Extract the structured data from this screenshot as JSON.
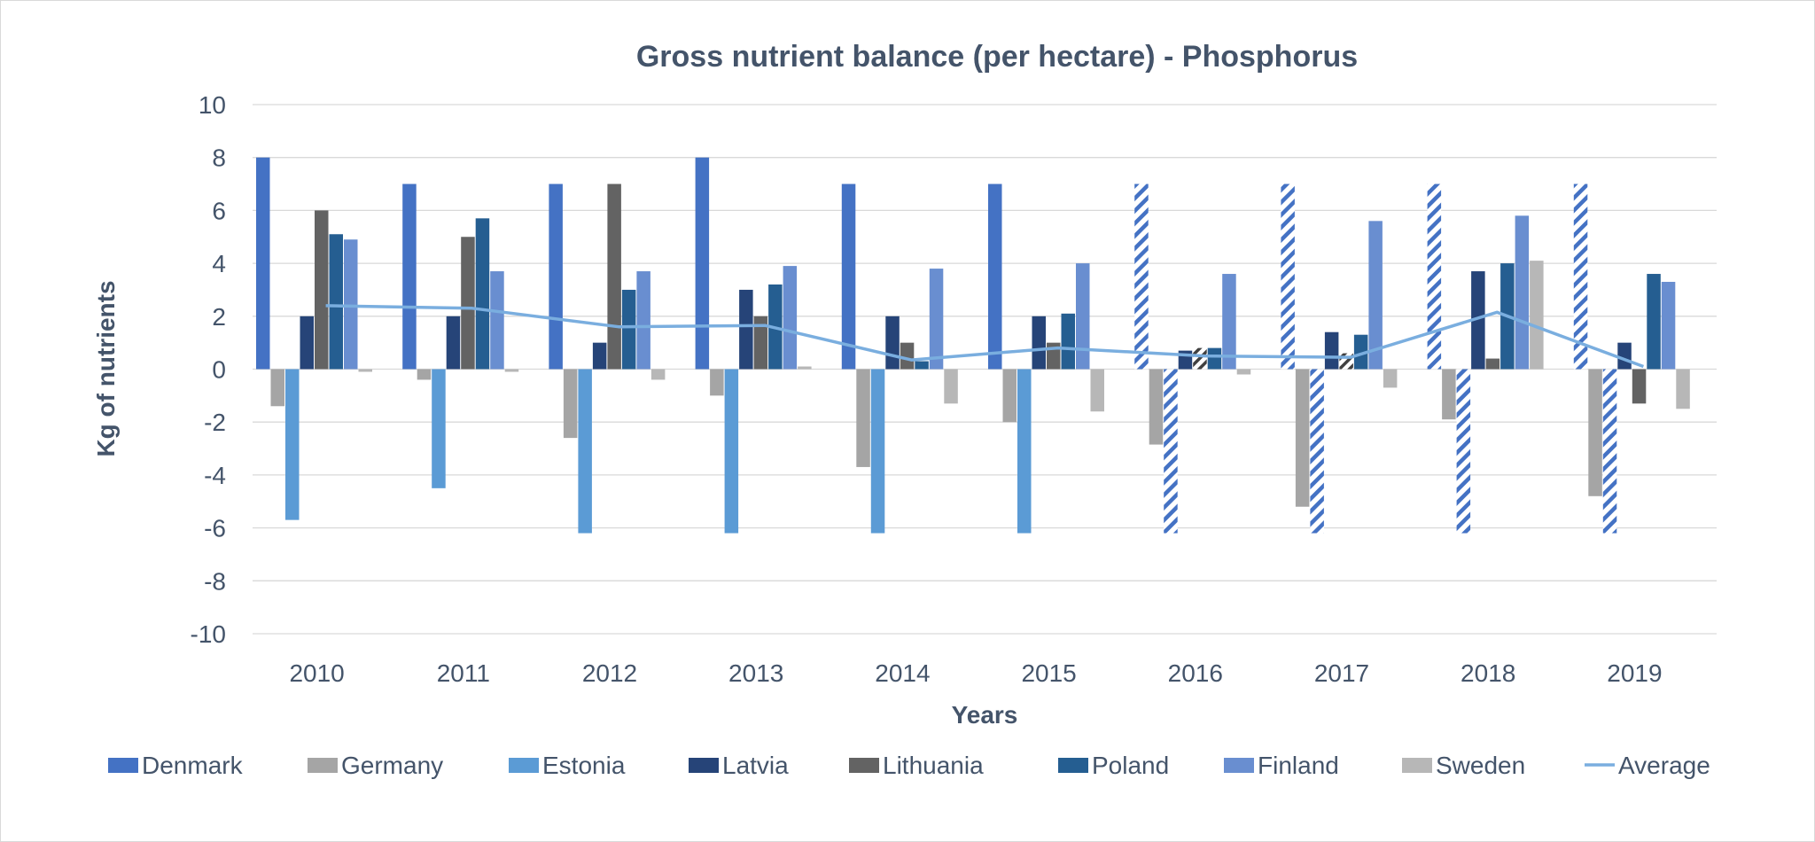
{
  "chart_data": {
    "type": "bar",
    "title": "Gross nutrient balance (per hectare) - Phosphorus",
    "xlabel": "Years",
    "ylabel": "Kg of nutrients",
    "ylim": [
      -10,
      10
    ],
    "yticks": [
      10,
      8,
      6,
      4,
      2,
      0,
      -2,
      -4,
      -6,
      -8,
      -10
    ],
    "ytick_labels": [
      "10",
      "8",
      "6",
      "4",
      "2",
      "0",
      "-2",
      "-4",
      "-6",
      "-8",
      "-10"
    ],
    "grid": true,
    "legend_position": "bottom",
    "categories": [
      "2010",
      "2011",
      "2012",
      "2013",
      "2014",
      "2015",
      "2016",
      "2017",
      "2018",
      "2019"
    ],
    "series": [
      {
        "name": "Denmark",
        "type": "bar",
        "color": "#4472c4",
        "values": [
          8,
          7,
          7,
          8,
          7,
          7,
          7,
          7,
          7,
          7
        ],
        "estimated": [
          false,
          false,
          false,
          false,
          false,
          false,
          true,
          true,
          true,
          true
        ]
      },
      {
        "name": "Germany",
        "type": "bar",
        "color": "#a5a5a5",
        "values": [
          -1.4,
          -0.4,
          -2.6,
          -1.0,
          -3.7,
          -2.0,
          -2.85,
          -5.2,
          -1.9,
          -4.8
        ]
      },
      {
        "name": "Estonia",
        "type": "bar",
        "color": "#5b9bd5",
        "values": [
          -5.7,
          -4.5,
          -6.2,
          -6.2,
          -6.2,
          -6.2,
          -6.2,
          -6.2,
          -6.2,
          -6.2
        ],
        "estimated": [
          false,
          false,
          false,
          false,
          false,
          false,
          true,
          true,
          true,
          true
        ]
      },
      {
        "name": "Latvia",
        "type": "bar",
        "color": "#264478",
        "values": [
          2,
          2,
          1,
          3,
          2,
          2,
          0.7,
          1.4,
          3.7,
          1
        ]
      },
      {
        "name": "Lithuania",
        "type": "bar",
        "color": "#636363",
        "values": [
          6,
          5,
          7,
          2,
          1,
          1,
          0.8,
          0.6,
          0.4,
          -1.3
        ],
        "estimated": [
          false,
          false,
          false,
          false,
          false,
          false,
          true,
          true,
          false,
          false
        ]
      },
      {
        "name": "Poland",
        "type": "bar",
        "color": "#255e91",
        "values": [
          5.1,
          5.7,
          3,
          3.2,
          0.3,
          2.1,
          0.8,
          1.3,
          4,
          3.6
        ]
      },
      {
        "name": "Finland",
        "type": "bar",
        "color": "#698ed0",
        "values": [
          4.9,
          3.7,
          3.7,
          3.9,
          3.8,
          4,
          3.6,
          5.6,
          5.8,
          3.3
        ]
      },
      {
        "name": "Sweden",
        "type": "bar",
        "color": "#b7b7b7",
        "values": [
          -0.1,
          -0.1,
          -0.4,
          0.1,
          -1.3,
          -1.6,
          -0.2,
          -0.7,
          4.1,
          -1.5
        ]
      },
      {
        "name": "Average",
        "type": "line",
        "color": "#7aaedf",
        "values": [
          2.4,
          2.3,
          1.6,
          1.65,
          0.35,
          0.8,
          0.5,
          0.45,
          2.15,
          0.1
        ]
      }
    ]
  }
}
